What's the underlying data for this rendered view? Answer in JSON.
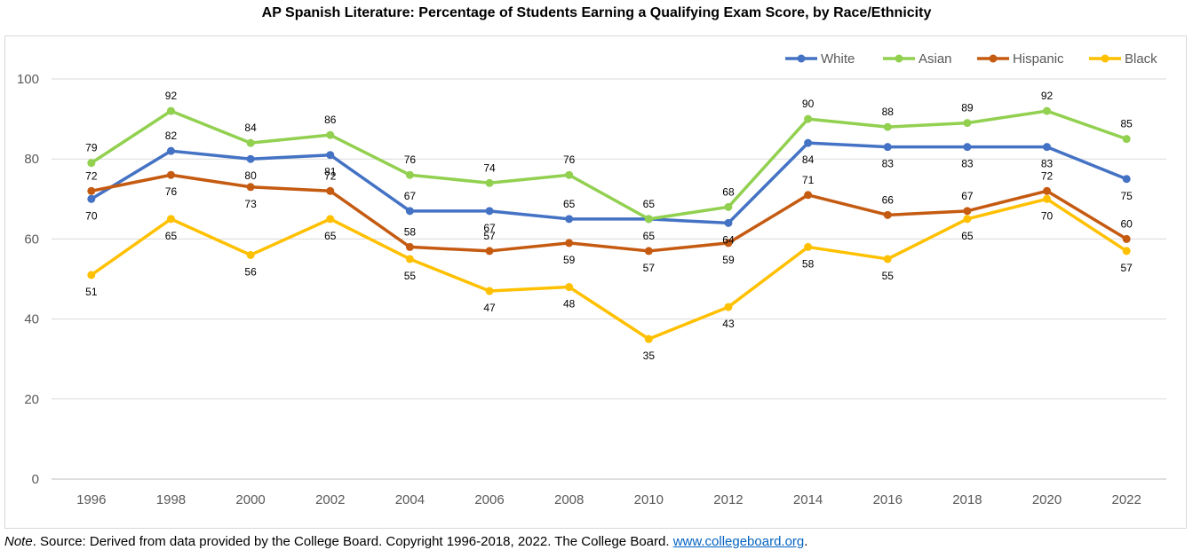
{
  "chart_data": {
    "type": "line",
    "title": "AP Spanish Literature: Percentage of Students Earning a Qualifying Exam Score, by Race/Ethnicity",
    "xlabel": "",
    "ylabel": "",
    "x": [
      "1996",
      "1998",
      "2000",
      "2002",
      "2004",
      "2006",
      "2008",
      "2010",
      "2012",
      "2014",
      "2016",
      "2018",
      "2020",
      "2022"
    ],
    "ylim": [
      0,
      100
    ],
    "yticks": [
      0,
      20,
      40,
      60,
      80,
      100
    ],
    "grid": true,
    "legend_position": "top-right",
    "series": [
      {
        "name": "White",
        "color": "#4472c4",
        "values": [
          70,
          82,
          80,
          81,
          67,
          67,
          65,
          65,
          64,
          84,
          83,
          83,
          83,
          75
        ]
      },
      {
        "name": "Asian",
        "color": "#92d050",
        "values": [
          79,
          92,
          84,
          86,
          76,
          74,
          76,
          65,
          68,
          90,
          88,
          89,
          92,
          85
        ]
      },
      {
        "name": "Hispanic",
        "color": "#c55a11",
        "values": [
          72,
          76,
          73,
          72,
          58,
          57,
          59,
          57,
          59,
          71,
          66,
          67,
          72,
          60
        ]
      },
      {
        "name": "Black",
        "color": "#ffc000",
        "values": [
          51,
          65,
          56,
          65,
          55,
          47,
          48,
          35,
          43,
          58,
          55,
          65,
          70,
          57
        ]
      }
    ]
  },
  "note": {
    "prefix": "Note",
    "text": ". Source: Derived from data provided by the College Board. Copyright 1996-2018, 2022. The College Board. ",
    "link": "www.collegeboard.org",
    "suffix": "."
  }
}
